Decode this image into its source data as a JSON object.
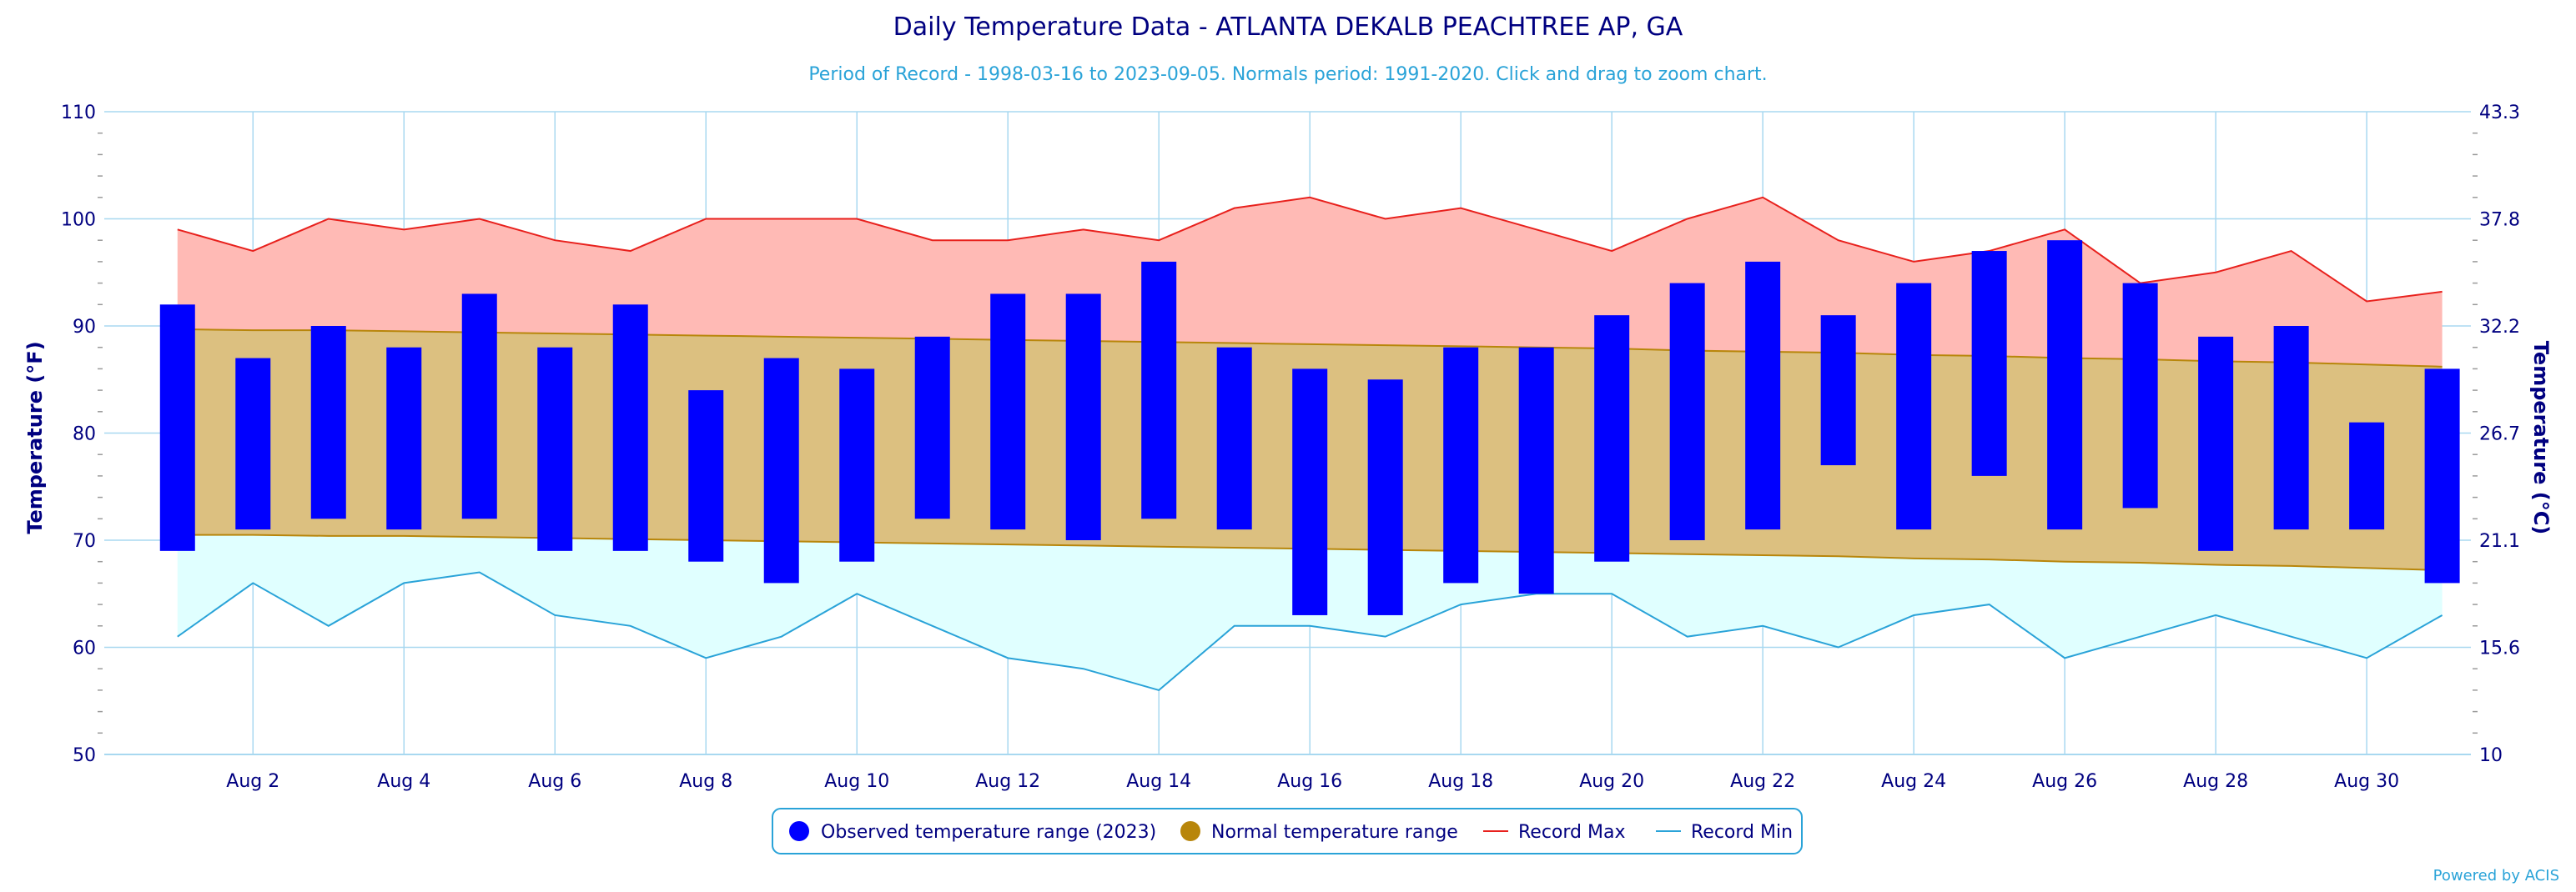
{
  "chart_data": {
    "type": "bar",
    "title": "Daily Temperature Data - ATLANTA DEKALB PEACHTREE AP, GA",
    "subtitle": "Period of Record - 1998-03-16 to 2023-09-05. Normals period: 1991-2020. Click and drag to zoom chart.",
    "ylabel_left": "Temperature (°F)",
    "ylabel_right": "Temperature (°C)",
    "ylim": [
      50,
      110
    ],
    "y_ticks_left": [
      "50",
      "60",
      "70",
      "80",
      "90",
      "100",
      "110"
    ],
    "y_ticks_right": [
      "10",
      "15.6",
      "21.1",
      "26.7",
      "32.2",
      "37.8",
      "43.3"
    ],
    "x_tick_labels": [
      "Aug 2",
      "Aug 4",
      "Aug 6",
      "Aug 8",
      "Aug 10",
      "Aug 12",
      "Aug 14",
      "Aug 16",
      "Aug 18",
      "Aug 20",
      "Aug 22",
      "Aug 24",
      "Aug 26",
      "Aug 28",
      "Aug 30"
    ],
    "x_tick_days": [
      2,
      4,
      6,
      8,
      10,
      12,
      14,
      16,
      18,
      20,
      22,
      24,
      26,
      28,
      30
    ],
    "days": [
      1,
      2,
      3,
      4,
      5,
      6,
      7,
      8,
      9,
      10,
      11,
      12,
      13,
      14,
      15,
      16,
      17,
      18,
      19,
      20,
      21,
      22,
      23,
      24,
      25,
      26,
      27,
      28,
      29,
      30,
      31
    ],
    "observed_2023": {
      "name": "Observed temperature range (2023)",
      "color": "#0000ff",
      "low": [
        69,
        71,
        72,
        71,
        72,
        69,
        69,
        68,
        66,
        68,
        72,
        71,
        70,
        72,
        71,
        63,
        63,
        66,
        65,
        68,
        70,
        71,
        77,
        71,
        76,
        71,
        73,
        69,
        71,
        71,
        66
      ],
      "high": [
        92,
        87,
        90,
        88,
        93,
        88,
        92,
        84,
        87,
        86,
        89,
        93,
        93,
        96,
        88,
        86,
        85,
        88,
        88,
        91,
        94,
        96,
        91,
        94,
        97,
        98,
        94,
        89,
        90,
        81,
        86
      ]
    },
    "normal_range": {
      "name": "Normal temperature range",
      "color": "#b8860b",
      "fill": "#dcc080",
      "high": [
        89.7,
        89.6,
        89.6,
        89.5,
        89.4,
        89.3,
        89.2,
        89.1,
        89.0,
        88.9,
        88.8,
        88.7,
        88.6,
        88.5,
        88.4,
        88.3,
        88.2,
        88.1,
        88.0,
        87.9,
        87.7,
        87.6,
        87.5,
        87.3,
        87.2,
        87.0,
        86.9,
        86.7,
        86.6,
        86.4,
        86.2
      ],
      "low": [
        70.5,
        70.5,
        70.4,
        70.4,
        70.3,
        70.2,
        70.1,
        70.0,
        69.9,
        69.8,
        69.7,
        69.6,
        69.5,
        69.4,
        69.3,
        69.2,
        69.1,
        69.0,
        68.9,
        68.8,
        68.7,
        68.6,
        68.5,
        68.3,
        68.2,
        68.0,
        67.9,
        67.7,
        67.6,
        67.4,
        67.2
      ]
    },
    "record_max": {
      "name": "Record Max",
      "color": "#e8211d",
      "fill": "#ffbab5",
      "values": [
        99,
        97,
        100,
        99,
        100,
        98,
        97,
        100,
        100,
        100,
        98,
        98,
        99,
        98,
        101,
        102,
        100,
        101,
        99,
        97,
        100,
        102,
        98,
        96,
        97,
        99,
        94,
        95,
        97,
        92.3,
        93.2
      ]
    },
    "record_min": {
      "name": "Record Min",
      "color": "#2aa3d8",
      "fill": "#e0ffff",
      "values": [
        61,
        66,
        62,
        66,
        67,
        63,
        62,
        59,
        61,
        65,
        62,
        59,
        58,
        56,
        62,
        62,
        61,
        64,
        65,
        65,
        61,
        62,
        60,
        63,
        64,
        59,
        61,
        63,
        61,
        59,
        63
      ]
    },
    "grid": true,
    "legend_position": "bottom-center",
    "credit": "Powered by ACIS"
  }
}
